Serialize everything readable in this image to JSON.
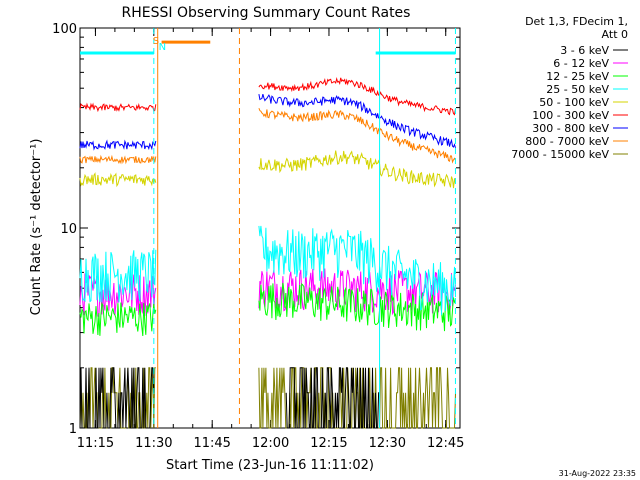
{
  "chart_data": {
    "type": "line",
    "title": "RHESSI Observing Summary Count Rates",
    "xlabel": "Start Time (23-Jun-16 11:11:02)",
    "ylabel": "Count Rate (s⁻¹ detector⁻¹)",
    "y_scale": "log",
    "ylim": [
      1,
      100
    ],
    "xlim": [
      "11:11:02",
      "12:48:40"
    ],
    "x_ticks": [
      "11:15",
      "11:30",
      "11:45",
      "12:00",
      "12:15",
      "12:30",
      "12:45"
    ],
    "y_ticks": [
      "1",
      "10",
      "100"
    ],
    "legend_title": [
      "Det 1,3, FDecim 1,",
      "Att 0"
    ],
    "legend_position": "right",
    "flag_markers": [
      {
        "label": "S",
        "time": "11:30:30",
        "color": "#ff8000"
      },
      {
        "label": "N",
        "time": "11:32:00",
        "color": "#00ffff"
      }
    ],
    "series": [
      {
        "name": "3 - 6 keV",
        "color": "#000000",
        "segments": [
          [
            "11:11:02",
            "11:30:00",
            1.0,
            1.0,
            0
          ],
          [
            "12:04:00",
            "12:28:00",
            1.35,
            1.0,
            0
          ]
        ]
      },
      {
        "name": "6 - 12 keV",
        "color": "#ff00ff",
        "segments": [
          [
            "11:11:02",
            "11:30:30",
            4.8,
            4.8,
            0.25
          ],
          [
            "11:57:00",
            "12:47:30",
            5.2,
            4.8,
            0.25
          ]
        ]
      },
      {
        "name": "12 - 25 keV",
        "color": "#00ff00",
        "segments": [
          [
            "11:11:02",
            "11:30:30",
            3.6,
            3.6,
            0.2
          ],
          [
            "11:57:00",
            "12:47:30",
            4.5,
            3.8,
            0.22
          ]
        ]
      },
      {
        "name": "25 - 50 keV",
        "color": "#00ffff",
        "segments": [
          [
            "11:11:02",
            "11:30:30",
            6.0,
            6.0,
            0.3
          ],
          [
            "11:57:00",
            "12:47:30",
            8.0,
            5.0,
            0.3
          ]
        ]
      },
      {
        "name": "50 - 100 keV",
        "color": "#d4d400",
        "segments": [
          [
            "11:11:02",
            "11:30:30",
            17.5,
            17.5,
            0.07
          ],
          [
            "11:57:00",
            "12:47:30",
            21,
            17,
            0.08
          ]
        ]
      },
      {
        "name": "100 - 300 keV",
        "color": "#ff0000",
        "segments": [
          [
            "11:11:02",
            "11:30:30",
            40,
            40,
            0.04
          ],
          [
            "11:57:00",
            "12:47:30",
            52,
            38,
            0.04
          ]
        ]
      },
      {
        "name": "300 - 800 keV",
        "color": "#0000ff",
        "segments": [
          [
            "11:11:02",
            "11:30:30",
            26,
            26,
            0.05
          ],
          [
            "11:57:00",
            "12:47:30",
            45,
            26,
            0.05
          ]
        ]
      },
      {
        "name": "800 - 7000 keV",
        "color": "#ff8000",
        "segments": [
          [
            "11:11:02",
            "11:30:30",
            22,
            22,
            0.04
          ],
          [
            "11:57:00",
            "12:47:30",
            38,
            22,
            0.05
          ]
        ]
      },
      {
        "name": "7000 - 15000 keV",
        "color": "#808000",
        "segments": [
          [
            "11:11:02",
            "11:30:30",
            1.6,
            1.6,
            0.15
          ],
          [
            "11:57:00",
            "12:47:30",
            1.6,
            1.6,
            0.15
          ]
        ]
      }
    ],
    "status_bars": [
      {
        "label": "orange",
        "color": "#ff8000",
        "from": "11:32:00",
        "to": "11:44:30",
        "level": 85
      },
      {
        "label": "cyan-left",
        "color": "#00ffff",
        "from": "11:11:02",
        "to": "11:30:00",
        "level": 75
      },
      {
        "label": "cyan-right",
        "color": "#00ffff",
        "from": "12:27:00",
        "to": "12:47:30",
        "level": 75
      }
    ],
    "vlines": [
      {
        "time": "11:30:00",
        "color": "#00ffff",
        "style": "dashed"
      },
      {
        "time": "11:31:00",
        "color": "#ff8000",
        "style": "solid"
      },
      {
        "time": "11:52:00",
        "color": "#ff8000",
        "style": "dashed"
      },
      {
        "time": "12:28:00",
        "color": "#00ffff",
        "style": "solid"
      },
      {
        "time": "12:47:30",
        "color": "#00ffff",
        "style": "dashed"
      }
    ]
  },
  "footer_timestamp": "31-Aug-2022 23:35"
}
